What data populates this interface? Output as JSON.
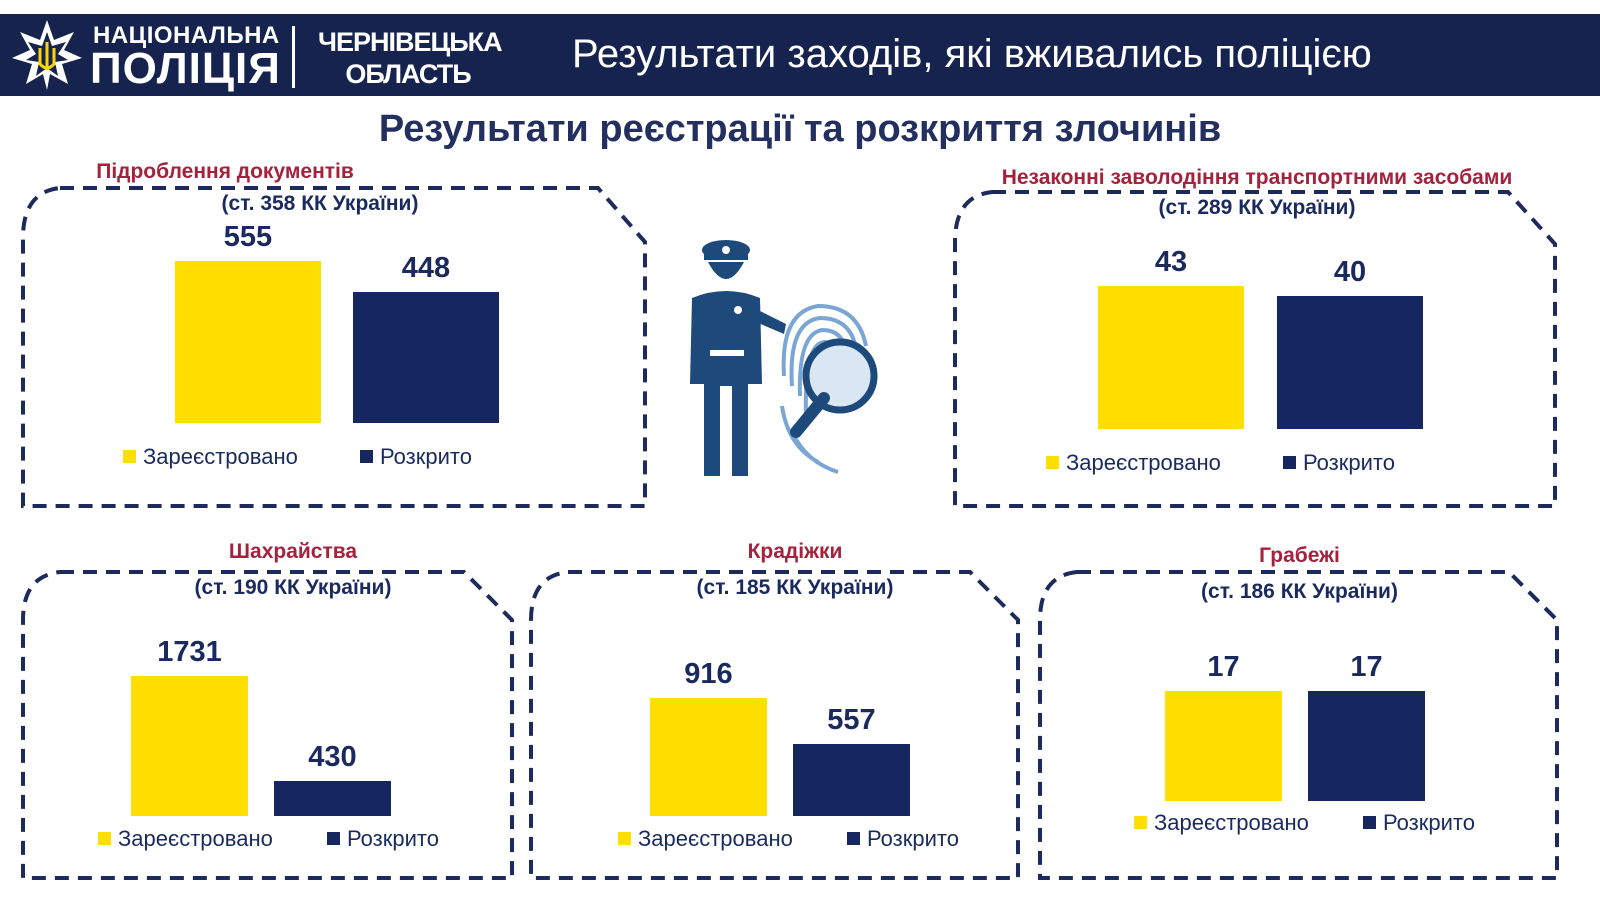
{
  "header": {
    "org_line1": "НАЦІОНАЛЬНА",
    "org_line2": "ПОЛІЦІЯ",
    "region_line1": "ЧЕРНІВЕЦЬКА",
    "region_line2": "ОБЛАСТЬ",
    "title": "Результати заходів, які вживались поліцією"
  },
  "main_title": "Результати реєстрації та розкриття злочинів",
  "legend": {
    "registered": "Зареєстровано",
    "solved": "Розкрито"
  },
  "colors": {
    "registered": "#ffdf00",
    "solved": "#16275f",
    "header_bg": "#16234f",
    "panel_title": "#a4223c"
  },
  "chart_data": [
    {
      "type": "bar",
      "title": "Підроблення документів",
      "subtitle": "(ст. 358 КК України)",
      "categories": [
        "Зареєстровано",
        "Розкрито"
      ],
      "values": [
        555,
        448
      ]
    },
    {
      "type": "bar",
      "title": "Незаконні заволодіння транспортними засобами",
      "subtitle": "(ст. 289 КК України)",
      "categories": [
        "Зареєстровано",
        "Розкрито"
      ],
      "values": [
        43,
        40
      ]
    },
    {
      "type": "bar",
      "title": "Шахрайства",
      "subtitle": "(ст. 190 КК України)",
      "categories": [
        "Зареєстровано",
        "Розкрито"
      ],
      "values": [
        1731,
        430
      ]
    },
    {
      "type": "bar",
      "title": "Крадіжки",
      "subtitle": "(ст. 185 КК України)",
      "categories": [
        "Зареєстровано",
        "Розкрито"
      ],
      "values": [
        916,
        557
      ]
    },
    {
      "type": "bar",
      "title": "Грабежі",
      "subtitle": "(ст. 186 КК України)",
      "categories": [
        "Зареєстровано",
        "Розкрито"
      ],
      "values": [
        17,
        17
      ]
    }
  ],
  "icons": {
    "emblem": "police-star-emblem-icon",
    "illustration": "police-officer-fingerprint-icon"
  }
}
